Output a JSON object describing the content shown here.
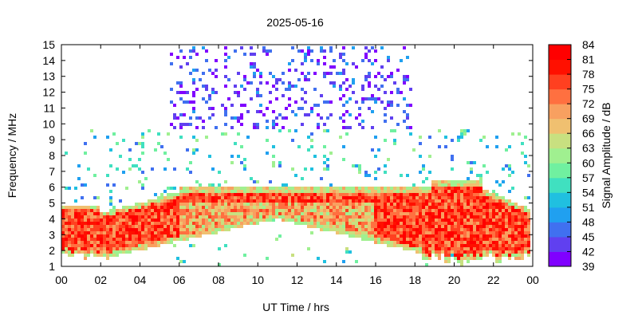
{
  "chart_data": {
    "type": "heatmap",
    "title": "2025-05-16",
    "xlabel": "UT Time / hrs",
    "ylabel": "Frequency / MHz",
    "x_ticks": [
      "00",
      "02",
      "04",
      "06",
      "08",
      "10",
      "12",
      "14",
      "16",
      "18",
      "20",
      "22",
      "00"
    ],
    "xlim": [
      0,
      24
    ],
    "ylim": [
      1,
      15
    ],
    "y_ticks": [
      1,
      2,
      3,
      4,
      5,
      6,
      7,
      8,
      9,
      10,
      11,
      12,
      13,
      14,
      15
    ],
    "grid": false,
    "colorbar": {
      "label": "Signal Amplitude / dB",
      "range": [
        39,
        84
      ],
      "ticks": [
        39,
        42,
        45,
        48,
        51,
        54,
        57,
        60,
        63,
        66,
        69,
        72,
        75,
        78,
        81,
        84
      ],
      "colors": [
        "#8000ff",
        "#6040f0",
        "#4070f0",
        "#20a0f0",
        "#20c0e0",
        "#40e0c0",
        "#70f0a0",
        "#a0f090",
        "#c8e080",
        "#f0c070",
        "#f8a060",
        "#ff7040",
        "#ff4020",
        "#ff1000",
        "#ff0000"
      ]
    },
    "signal_regions": [
      {
        "description": "strong band",
        "x_range": [
          0,
          24
        ],
        "freq_low_start": 1.5,
        "freq_high_start": 5.0,
        "amplitude": 78
      },
      {
        "description": "midday band",
        "x_range": [
          6,
          18
        ],
        "freq_low": 4.0,
        "freq_high": 6.0,
        "amplitude": 72
      },
      {
        "description": "sparse high-frequency noise",
        "x_range": [
          5.5,
          18
        ],
        "freq_range": [
          10,
          15
        ],
        "amplitude": 42
      }
    ]
  }
}
